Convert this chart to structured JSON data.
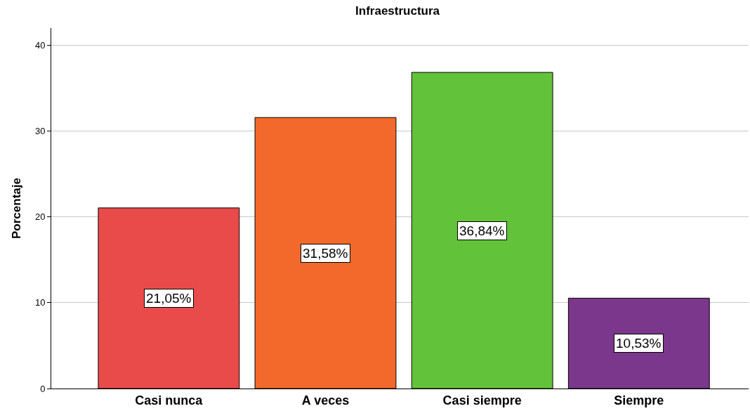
{
  "chart_data": {
    "type": "bar",
    "title": "Infraestructura",
    "ylabel": "Porcentaje",
    "categories": [
      "Casi nunca",
      "A veces",
      "Casi siempre",
      "Siempre"
    ],
    "values": [
      21.05,
      31.58,
      36.84,
      10.53
    ],
    "colors": [
      "#e94b4b",
      "#f2692b",
      "#62c33a",
      "#7a378b"
    ],
    "value_labels": [
      "21,05%",
      "31,58%",
      "36,84%",
      "10,53%"
    ],
    "ylim": [
      0,
      42
    ],
    "yticks": [
      0,
      10,
      20,
      30,
      40
    ],
    "grid": "y"
  }
}
